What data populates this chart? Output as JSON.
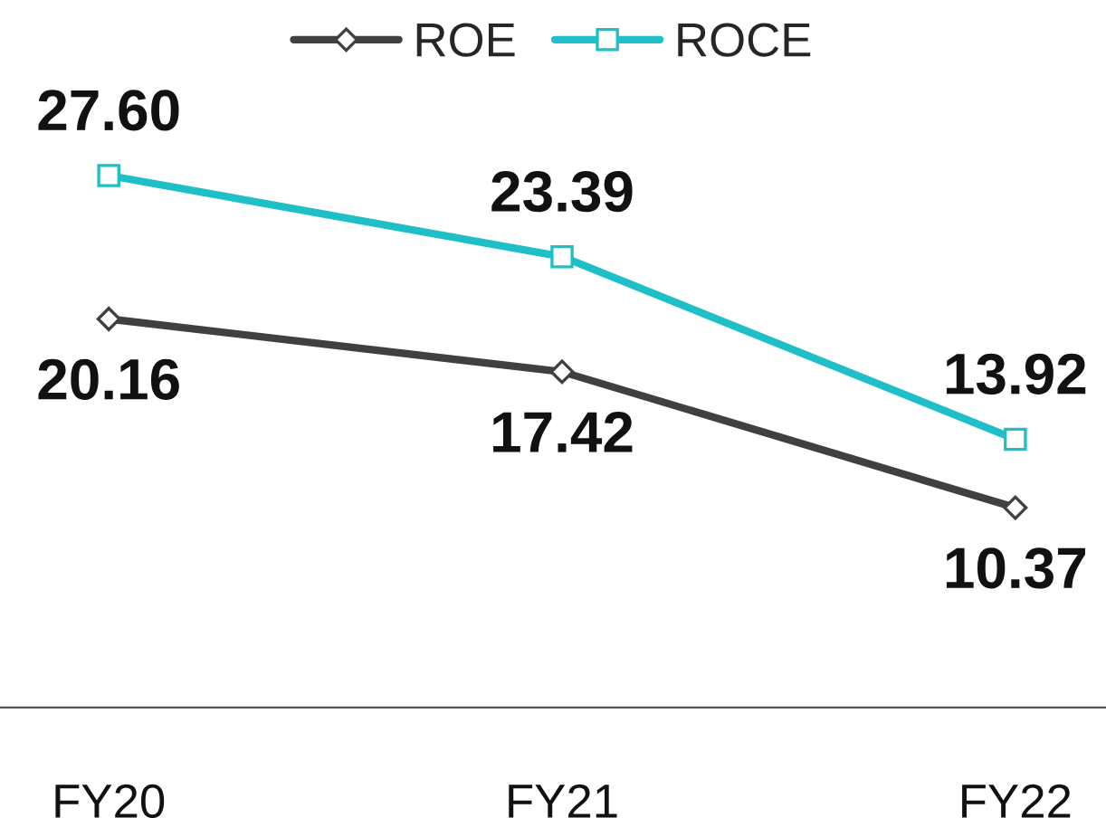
{
  "chart_data": {
    "type": "line",
    "categories": [
      "FY20",
      "FY21",
      "FY22"
    ],
    "series": [
      {
        "name": "ROE",
        "color": "#404040",
        "values": [
          20.16,
          17.42,
          10.37
        ],
        "value_labels": [
          "20.16",
          "17.42",
          "10.37"
        ],
        "marker": "diamond"
      },
      {
        "name": "ROCE",
        "color": "#1fbfc8",
        "values": [
          27.6,
          23.39,
          13.92
        ],
        "value_labels": [
          "27.60",
          "23.39",
          "13.92"
        ],
        "marker": "square"
      }
    ],
    "legend": "top",
    "grid": false,
    "tick_labels": "x",
    "line_style": "solid"
  }
}
